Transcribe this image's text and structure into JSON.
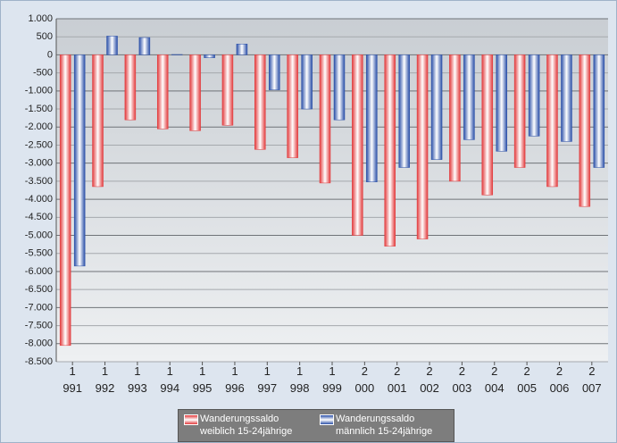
{
  "chart_data": {
    "type": "bar",
    "categories": [
      "1\n991",
      "1\n992",
      "1\n993",
      "1\n994",
      "1\n995",
      "1\n996",
      "1\n997",
      "1\n998",
      "1\n999",
      "2\n000",
      "2\n001",
      "2\n002",
      "2\n003",
      "2\n004",
      "2\n005",
      "2\n006",
      "2\n007"
    ],
    "series": [
      {
        "name": "Wanderungssaldo\nweiblich 15-24jährige",
        "color": "#e23a3c",
        "values": [
          -8050,
          -3650,
          -1800,
          -2050,
          -2100,
          -1950,
          -2620,
          -2850,
          -3550,
          -5000,
          -5300,
          -5100,
          -3500,
          -3880,
          -3120,
          -3650,
          -4200
        ]
      },
      {
        "name": "Wanderungssaldo\nmännlich 15-24jährige",
        "color": "#2a4fa8",
        "values": [
          -5850,
          520,
          480,
          10,
          -80,
          300,
          -970,
          -1500,
          -1800,
          -3520,
          -3120,
          -2900,
          -2350,
          -2670,
          -2250,
          -2400,
          -3120
        ]
      }
    ],
    "ylim": [
      -8500,
      1000
    ],
    "yticks": [
      {
        "value": 1000,
        "label": "1.000"
      },
      500,
      0,
      -500,
      {
        "value": -1000,
        "label": "-1.000"
      },
      {
        "value": -1500,
        "label": "-1.500"
      },
      {
        "value": -2000,
        "label": "-2.000"
      },
      {
        "value": -2500,
        "label": "-2.500"
      },
      {
        "value": -3000,
        "label": "-3.000"
      },
      {
        "value": -3500,
        "label": "-3.500"
      },
      {
        "value": -4000,
        "label": "-4.000"
      },
      {
        "value": -4500,
        "label": "-4.500"
      },
      {
        "value": -5000,
        "label": "-5.000"
      },
      {
        "value": -5500,
        "label": "-5.500"
      },
      {
        "value": -6000,
        "label": "-6.000"
      },
      {
        "value": -6500,
        "label": "-6.500"
      },
      {
        "value": -7000,
        "label": "-7.000"
      },
      {
        "value": -7500,
        "label": "-7.500"
      },
      {
        "value": -8000,
        "label": "-8.000"
      },
      {
        "value": -8500,
        "label": "-8.500"
      }
    ],
    "grid": true,
    "legend": "bottom"
  }
}
